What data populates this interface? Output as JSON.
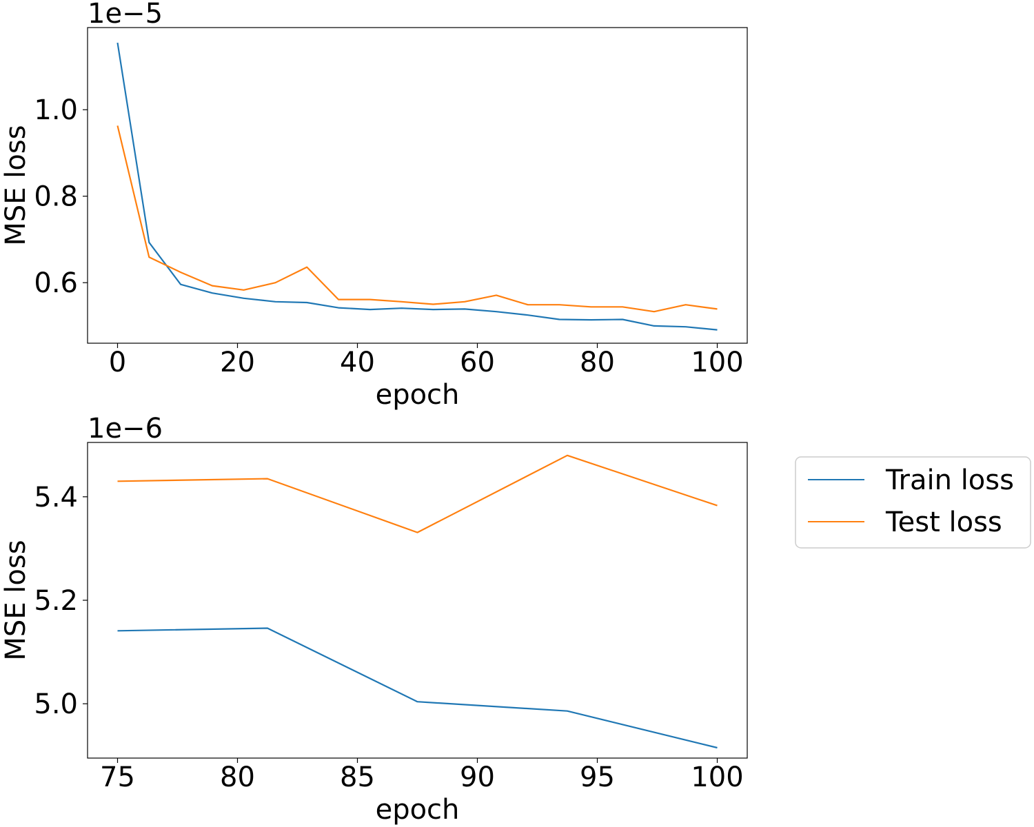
{
  "chart_data": [
    {
      "type": "line",
      "xlabel": "epoch",
      "ylabel": "MSE loss",
      "offset_text": "1e−5",
      "xlim": [
        -5,
        105
      ],
      "ylim": [
        0.46,
        1.19
      ],
      "xticks": [
        0,
        20,
        40,
        60,
        80,
        100
      ],
      "xtick_labels": [
        "0",
        "20",
        "40",
        "60",
        "80",
        "100"
      ],
      "yticks": [
        0.6,
        0.8,
        1.0
      ],
      "ytick_labels": [
        "0.6",
        "0.8",
        "1.0"
      ],
      "x": [
        0,
        5.26,
        10.53,
        15.79,
        21.05,
        26.32,
        31.58,
        36.84,
        42.11,
        47.37,
        52.63,
        57.89,
        63.16,
        68.42,
        73.68,
        78.95,
        84.21,
        89.47,
        94.74,
        100
      ],
      "series": [
        {
          "name": "Train loss",
          "color": "#1f77b4",
          "values": [
            1.155,
            0.693,
            0.596,
            0.576,
            0.564,
            0.556,
            0.554,
            0.542,
            0.538,
            0.541,
            0.538,
            0.539,
            0.533,
            0.525,
            0.515,
            0.514,
            0.515,
            0.5,
            0.498,
            0.491
          ]
        },
        {
          "name": "Test loss",
          "color": "#ff7f0e",
          "values": [
            0.963,
            0.659,
            0.624,
            0.593,
            0.583,
            0.6,
            0.636,
            0.561,
            0.561,
            0.556,
            0.55,
            0.556,
            0.571,
            0.549,
            0.549,
            0.544,
            0.544,
            0.533,
            0.549,
            0.539
          ]
        }
      ],
      "grid": false
    },
    {
      "type": "line",
      "xlabel": "epoch",
      "ylabel": "MSE loss",
      "offset_text": "1e−6",
      "xlim": [
        73.75,
        101.25
      ],
      "ylim": [
        4.895,
        5.505
      ],
      "xticks": [
        75,
        80,
        85,
        90,
        95,
        100
      ],
      "xtick_labels": [
        "75",
        "80",
        "85",
        "90",
        "95",
        "100"
      ],
      "yticks": [
        5.0,
        5.2,
        5.4
      ],
      "ytick_labels": [
        "5.0",
        "5.2",
        "5.4"
      ],
      "x": [
        75,
        81.25,
        87.5,
        93.75,
        100
      ],
      "series": [
        {
          "name": "Train loss",
          "color": "#1f77b4",
          "values": [
            5.141,
            5.146,
            5.004,
            4.986,
            4.915
          ]
        },
        {
          "name": "Test loss",
          "color": "#ff7f0e",
          "values": [
            5.43,
            5.435,
            5.331,
            5.48,
            5.383
          ]
        }
      ],
      "grid": false
    }
  ],
  "legend": {
    "placement": "right of bottom panel",
    "entries": [
      {
        "label": "Train loss",
        "color": "#1f77b4"
      },
      {
        "label": "Test loss",
        "color": "#ff7f0e"
      }
    ]
  }
}
